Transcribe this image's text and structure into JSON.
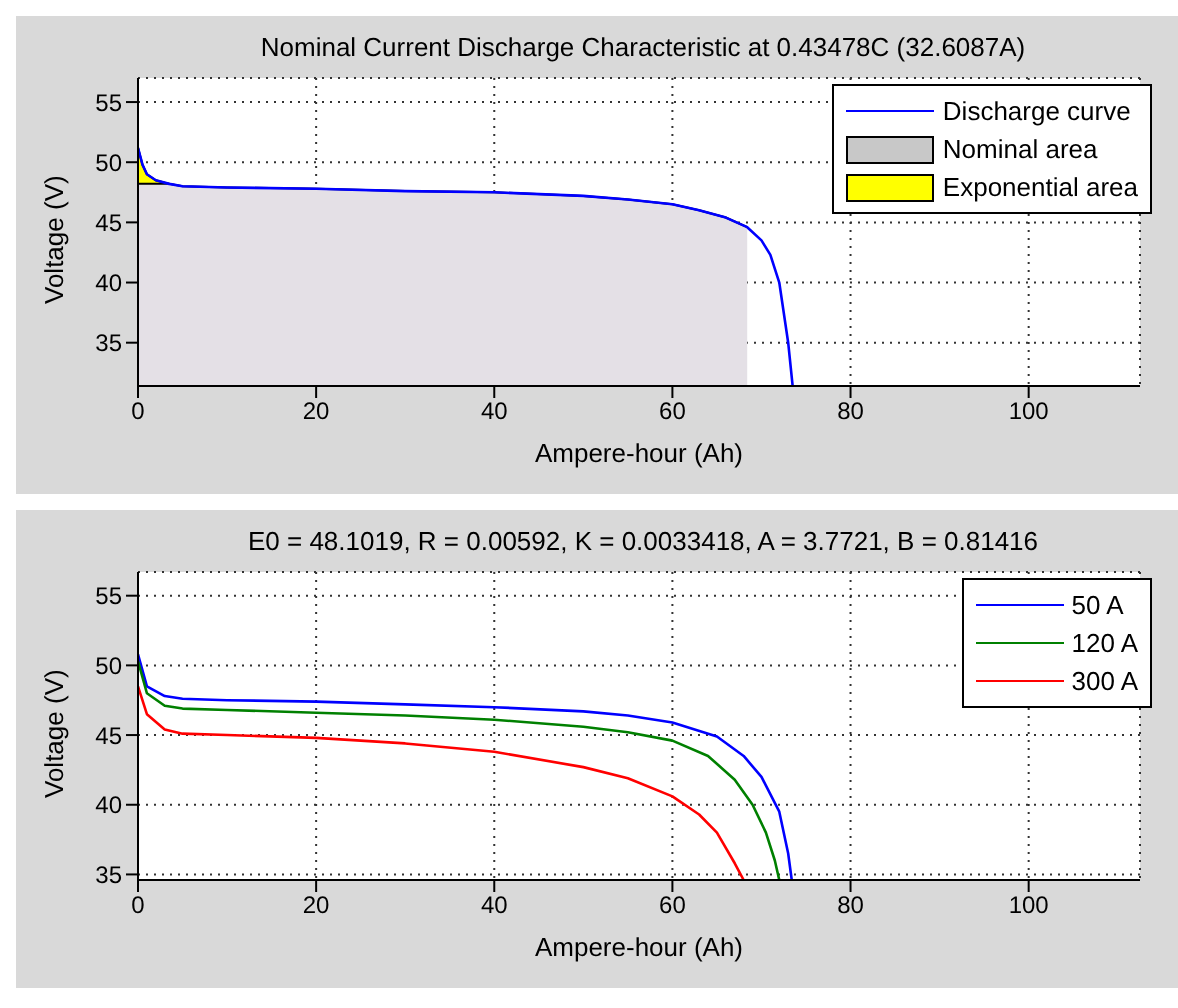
{
  "chart_data": [
    {
      "type": "line",
      "title": "Nominal Current Discharge Characteristic at 0.43478C (32.6087A)",
      "xlabel": "Ampere-hour (Ah)",
      "ylabel": "Voltage (V)",
      "xlim": [
        0,
        112.5
      ],
      "ylim": [
        31.4,
        57
      ],
      "xticks": [
        0,
        20,
        40,
        60,
        80,
        100
      ],
      "yticks": [
        35,
        40,
        45,
        50,
        55
      ],
      "grid": true,
      "legend": "top right",
      "series": [
        {
          "name": "Discharge curve",
          "type": "line",
          "color": "#0000ff",
          "x": [
            0,
            0.5,
            1,
            2,
            3.5,
            5,
            10,
            20,
            30,
            40,
            50,
            55,
            60,
            63,
            66,
            68.4,
            70,
            71,
            72,
            73,
            73.5
          ],
          "values": [
            51.2,
            49.8,
            49.0,
            48.5,
            48.2,
            48.0,
            47.9,
            47.8,
            47.6,
            47.5,
            47.2,
            46.9,
            46.5,
            46.0,
            45.4,
            44.6,
            43.5,
            42.3,
            40.0,
            35.0,
            31.4
          ]
        },
        {
          "name": "Nominal area",
          "type": "area",
          "color": "#e4e0e6",
          "x": [
            0,
            3.5,
            5,
            10,
            20,
            30,
            40,
            50,
            55,
            60,
            63,
            66,
            68.4
          ],
          "values": [
            48.2,
            48.2,
            48.0,
            47.9,
            47.8,
            47.6,
            47.5,
            47.2,
            46.9,
            46.5,
            46.0,
            45.4,
            44.6
          ]
        },
        {
          "name": "Exponential area",
          "type": "area",
          "color": "#ffff00",
          "x": [
            0,
            0.5,
            1,
            2,
            3.5
          ],
          "values": [
            51.2,
            49.8,
            49.0,
            48.5,
            48.2
          ]
        }
      ]
    },
    {
      "type": "line",
      "title": "E0 = 48.1019, R = 0.00592, K = 0.0033418, A = 3.7721, B = 0.81416",
      "xlabel": "Ampere-hour (Ah)",
      "ylabel": "Voltage (V)",
      "xlim": [
        0,
        112.5
      ],
      "ylim": [
        34.6,
        56.7
      ],
      "xticks": [
        0,
        20,
        40,
        60,
        80,
        100
      ],
      "yticks": [
        35,
        40,
        45,
        50,
        55
      ],
      "grid": true,
      "legend": "top right",
      "series": [
        {
          "name": "50 A",
          "color": "#0000ff",
          "x": [
            0,
            1,
            3,
            5,
            10,
            20,
            30,
            40,
            50,
            55,
            60,
            65,
            68,
            70,
            72,
            73,
            73.4
          ],
          "values": [
            50.8,
            48.5,
            47.8,
            47.6,
            47.5,
            47.4,
            47.2,
            47.0,
            46.7,
            46.4,
            45.9,
            44.9,
            43.5,
            42.0,
            39.5,
            36.5,
            34.6
          ]
        },
        {
          "name": "120 A",
          "color": "#008000",
          "x": [
            0,
            1,
            3,
            5,
            10,
            20,
            30,
            40,
            50,
            55,
            60,
            64,
            67,
            69,
            70.5,
            71.5,
            72
          ],
          "values": [
            50.3,
            48.0,
            47.1,
            46.9,
            46.8,
            46.6,
            46.4,
            46.1,
            45.6,
            45.2,
            44.6,
            43.5,
            41.8,
            40.0,
            38.0,
            36.0,
            34.6
          ]
        },
        {
          "name": "300 A",
          "color": "#ff0000",
          "x": [
            0,
            1,
            3,
            5,
            10,
            20,
            30,
            40,
            50,
            55,
            60,
            63,
            65,
            67,
            68
          ],
          "values": [
            48.5,
            46.5,
            45.4,
            45.1,
            45.0,
            44.8,
            44.4,
            43.8,
            42.7,
            41.9,
            40.6,
            39.3,
            38.0,
            35.8,
            34.6
          ]
        }
      ]
    }
  ]
}
